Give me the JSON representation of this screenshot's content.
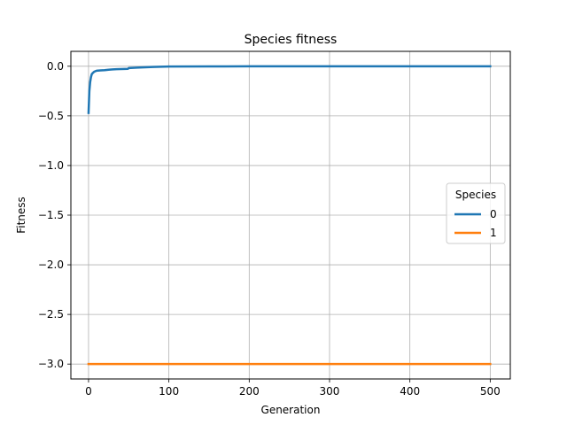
{
  "chart_data": {
    "type": "line",
    "title": "Species fitness",
    "xlabel": "Generation",
    "ylabel": "Fitness",
    "xlim": [
      -22,
      525
    ],
    "ylim": [
      -3.15,
      0.15
    ],
    "x_ticks": [
      0,
      100,
      200,
      300,
      400,
      500
    ],
    "x_tick_labels": [
      "0",
      "100",
      "200",
      "300",
      "400",
      "500"
    ],
    "y_ticks": [
      0.0,
      -0.5,
      -1.0,
      -1.5,
      -2.0,
      -2.5,
      -3.0
    ],
    "y_tick_labels": [
      "0.0",
      "−0.5",
      "−1.0",
      "−1.5",
      "−2.0",
      "−2.5",
      "−3.0"
    ],
    "grid": true,
    "legend": {
      "title": "Species",
      "position": "right"
    },
    "series": [
      {
        "name": "0",
        "color": "#1f77b4",
        "x": [
          0,
          1,
          2,
          3,
          4,
          5,
          7,
          10,
          15,
          20,
          25,
          30,
          35,
          40,
          45,
          49,
          50,
          55,
          60,
          70,
          80,
          90,
          100,
          150,
          200,
          300,
          400,
          500
        ],
        "y": [
          -0.47,
          -0.25,
          -0.16,
          -0.11,
          -0.08,
          -0.07,
          -0.055,
          -0.045,
          -0.042,
          -0.04,
          -0.035,
          -0.032,
          -0.03,
          -0.028,
          -0.027,
          -0.026,
          -0.018,
          -0.016,
          -0.014,
          -0.01,
          -0.007,
          -0.005,
          -0.003,
          -0.002,
          -0.001,
          -0.001,
          -0.001,
          -0.001
        ]
      },
      {
        "name": "1",
        "color": "#ff7f0e",
        "x": [
          0,
          500
        ],
        "y": [
          -3.0,
          -3.0
        ]
      }
    ]
  }
}
